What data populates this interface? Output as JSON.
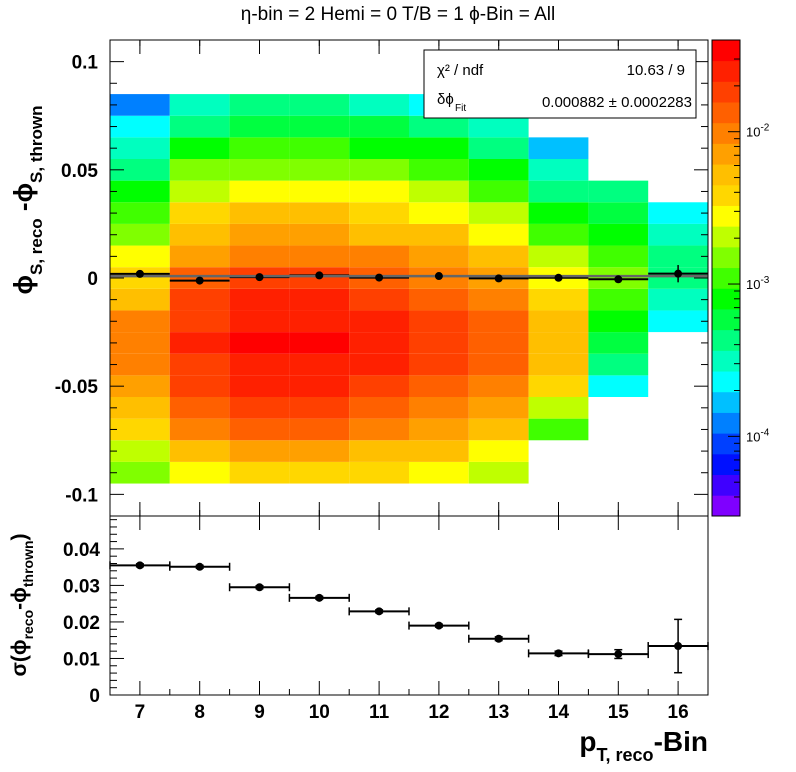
{
  "title": "η-bin = 2 Hemi = 0 T/B = 1  ϕ-Bin = All",
  "chart_data": [
    {
      "type": "heatmap",
      "x_bins": [
        7,
        8,
        9,
        10,
        11,
        12,
        13,
        14,
        15,
        16
      ],
      "xlim": [
        6.5,
        16.5
      ],
      "ylim": [
        -0.11,
        0.11
      ],
      "y_bin_width": 0.01,
      "y_tick_labels": [
        "-0.1",
        "-0.05",
        "0",
        "0.05",
        "0.1"
      ],
      "ylabel": "ϕ_{S, reco} -ϕ_{S, thrown}",
      "z_scale": "log",
      "zlim": [
        3e-05,
        0.04
      ],
      "z_tick_labels": [
        "10^{-4}",
        "10^{-3}",
        "10^{-2}"
      ],
      "cells": [
        [
          0.0013,
          0.002,
          0.0035,
          0.005,
          0.007,
          0.009,
          0.01,
          0.0085,
          0.006,
          0.004,
          0.0025,
          0.0015,
          0.001,
          0.0007,
          0.0005,
          0.0003,
          0.0002,
          0.00013
        ],
        [
          0.003,
          0.005,
          0.009,
          0.013,
          0.017,
          0.02,
          0.022,
          0.02,
          0.016,
          0.012,
          0.008,
          0.005,
          0.0033,
          0.002,
          0.0013,
          0.0008,
          0.0005,
          0.0003
        ],
        [
          0.004,
          0.007,
          0.012,
          0.017,
          0.023,
          0.028,
          0.03,
          0.028,
          0.022,
          0.016,
          0.011,
          0.007,
          0.0045,
          0.0028,
          0.0017,
          0.001,
          0.0006,
          0.0004
        ],
        [
          0.004,
          0.007,
          0.012,
          0.017,
          0.023,
          0.028,
          0.03,
          0.028,
          0.022,
          0.016,
          0.011,
          0.007,
          0.0045,
          0.0028,
          0.0017,
          0.001,
          0.0006,
          0.0004
        ],
        [
          0.0035,
          0.006,
          0.01,
          0.015,
          0.02,
          0.025,
          0.027,
          0.025,
          0.02,
          0.014,
          0.01,
          0.006,
          0.004,
          0.0025,
          0.0015,
          0.0009,
          0.00055,
          0.00035
        ],
        [
          0.0028,
          0.0045,
          0.0075,
          0.011,
          0.015,
          0.018,
          0.02,
          0.018,
          0.014,
          0.01,
          0.007,
          0.0045,
          0.003,
          0.0018,
          0.0011,
          0.0007,
          0.0004,
          0.00025
        ],
        [
          0.0018,
          0.003,
          0.005,
          0.0075,
          0.01,
          0.012,
          0.013,
          0.012,
          0.0095,
          0.007,
          0.0048,
          0.003,
          0.002,
          0.0012,
          0.0008,
          0.0005,
          0.0003,
          0.0002
        ],
        [
          0,
          0,
          0.0012,
          0.0022,
          0.0035,
          0.005,
          0.006,
          0.005,
          0.004,
          0.0028,
          0.0018,
          0.0012,
          0.0008,
          0.0005,
          0.0003,
          0.00015,
          0,
          0
        ],
        [
          0,
          0,
          0,
          0,
          0.0002,
          0.0004,
          0.0006,
          0.0009,
          0.0012,
          0.0013,
          0.0012,
          0.0009,
          0.0006,
          0.0004,
          0,
          0,
          0,
          0
        ],
        [
          0,
          0,
          0,
          0,
          0,
          0,
          0,
          0.0002,
          0.0003,
          0.0004,
          0.0005,
          0.00035,
          0.0002,
          0,
          0,
          0,
          0,
          0
        ]
      ],
      "profile_points": [
        {
          "x": 7,
          "y": 0.0019,
          "err": 0.0006
        },
        {
          "x": 8,
          "y": -0.0012,
          "err": 0.0006
        },
        {
          "x": 9,
          "y": 0.0004,
          "err": 0.0006
        },
        {
          "x": 10,
          "y": 0.0012,
          "err": 0.0006
        },
        {
          "x": 11,
          "y": 0.0002,
          "err": 0.0006
        },
        {
          "x": 12,
          "y": 0.0009,
          "err": 0.0006
        },
        {
          "x": 13,
          "y": -0.0002,
          "err": 0.0006
        },
        {
          "x": 14,
          "y": 0.0001,
          "err": 0.0008
        },
        {
          "x": 15,
          "y": -0.0006,
          "err": 0.001
        },
        {
          "x": 16,
          "y": 0.002,
          "err": 0.004
        }
      ],
      "fit_value": 0.000882
    },
    {
      "type": "scatter",
      "x": [
        7,
        8,
        9,
        10,
        11,
        12,
        13,
        14,
        15,
        16
      ],
      "y": [
        0.0355,
        0.0351,
        0.0295,
        0.0266,
        0.0229,
        0.019,
        0.0154,
        0.0114,
        0.0112,
        0.0134
      ],
      "yerr": [
        0.0004,
        0.0004,
        0.0004,
        0.0004,
        0.0004,
        0.0004,
        0.0005,
        0.0006,
        0.0012,
        0.0073
      ],
      "xerr": 0.5,
      "xlim": [
        6.5,
        16.5
      ],
      "ylim": [
        0,
        0.049
      ],
      "x_tick_labels": [
        "7",
        "8",
        "9",
        "10",
        "11",
        "12",
        "13",
        "14",
        "15",
        "16"
      ],
      "y_tick_labels": [
        "0",
        "0.01",
        "0.02",
        "0.03",
        "0.04"
      ],
      "xlabel": "p_{T, reco}-Bin",
      "ylabel": "σ(ϕ_{reco}-ϕ_{thrown})"
    }
  ],
  "stats_box": {
    "row1_label": "χ² / ndf",
    "row1_value": "10.63 / 9",
    "row2_label": "δϕ",
    "row2_subscript": "Fit",
    "row2_value": "0.000882 ± 0.0002283"
  },
  "colors": {
    "palette": [
      "#7f00ff",
      "#3f00ff",
      "#0010ff",
      "#0040ff",
      "#0080ff",
      "#00c0ff",
      "#00ffff",
      "#00ffbf",
      "#00ff80",
      "#00ff40",
      "#00ff00",
      "#40ff00",
      "#80ff00",
      "#bfff00",
      "#ffff00",
      "#ffd700",
      "#ffbf00",
      "#ffa000",
      "#ff8000",
      "#ff6000",
      "#ff4000",
      "#ff2000",
      "#ff0000"
    ],
    "fit_line": "#666666",
    "markers": "#000000"
  }
}
